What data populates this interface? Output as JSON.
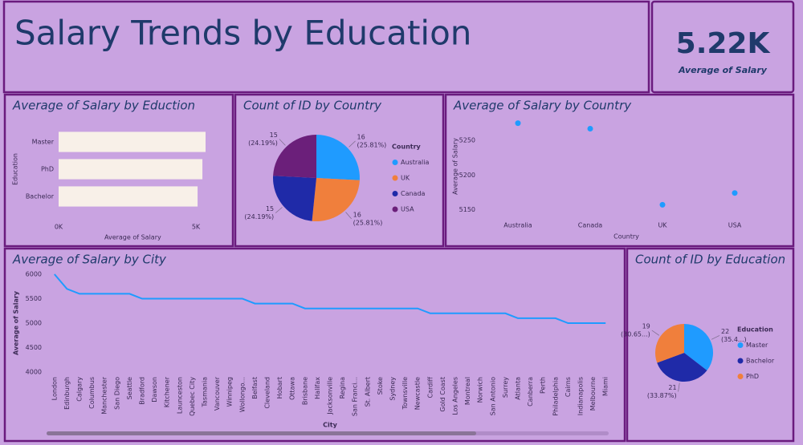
{
  "title": "Salary Trends by Education",
  "kpi": {
    "value": "5.22K",
    "label": "Average of Salary"
  },
  "chart_data": [
    {
      "type": "bar",
      "orientation": "horizontal",
      "title": "Average of Salary by Eduction",
      "categories": [
        "Master",
        "PhD",
        "Bachelor"
      ],
      "values": [
        5350,
        5235,
        5060
      ],
      "color": "#f8f0e8",
      "xlim": [
        0,
        5400
      ],
      "xticks": [
        {
          "value": 0,
          "label": "0K"
        },
        {
          "value": 5000,
          "label": "5K"
        }
      ],
      "x_label": "Average of Salary",
      "y_label": "Education"
    },
    {
      "type": "pie",
      "title": "Count of ID by Country",
      "legend_title": "Country",
      "categories": [
        "Australia",
        "UK",
        "Canada",
        "USA"
      ],
      "values": [
        16,
        16,
        15,
        15
      ],
      "percent_labels": [
        "(25.81%)",
        "(25.81%)",
        "(24.19%)",
        "(24.19%)"
      ],
      "colors": [
        "#1f9bff",
        "#f07f3c",
        "#1f2aa8",
        "#6b1f7a"
      ]
    },
    {
      "type": "scatter",
      "title": "Average of Salary by Country",
      "categories": [
        "Australia",
        "Canada",
        "UK",
        "USA"
      ],
      "values": [
        5275,
        5267,
        5157,
        5174
      ],
      "color": "#1f9bff",
      "ylim": [
        5140,
        5285
      ],
      "yticks": [
        5150,
        5200,
        5250
      ],
      "x_label": "Country",
      "y_label": "Average of Salary"
    },
    {
      "type": "line",
      "title": "Average of Salary by City",
      "categories": [
        "London",
        "Edinburgh",
        "Calgary",
        "Columbus",
        "Manchester",
        "San Diego",
        "Seattle",
        "Bradford",
        "Dawson",
        "Kitchener",
        "Launceston",
        "Quebec City",
        "Tasmania",
        "Vancouver",
        "Winnipeg",
        "Wollongo...",
        "Belfast",
        "Cleveland",
        "Hobart",
        "Ottawa",
        "Brisbane",
        "Halifax",
        "Jacksonville",
        "Regina",
        "San Franci...",
        "St. Albert",
        "Stoke",
        "Sydney",
        "Townsville",
        "Newcastle",
        "Cardiff",
        "Gold Coast",
        "Los Angeles",
        "Montreal",
        "Norwich",
        "San Antonio",
        "Surrey",
        "Atlanta",
        "Canberra",
        "Perth",
        "Philadelphia",
        "Cairns",
        "Indianapolis",
        "Melbourne",
        "Miami"
      ],
      "values": [
        6000,
        5700,
        5600,
        5600,
        5600,
        5600,
        5600,
        5500,
        5500,
        5500,
        5500,
        5500,
        5500,
        5500,
        5500,
        5500,
        5400,
        5400,
        5400,
        5400,
        5300,
        5300,
        5300,
        5300,
        5300,
        5300,
        5300,
        5300,
        5300,
        5300,
        5200,
        5200,
        5200,
        5200,
        5200,
        5200,
        5200,
        5100,
        5100,
        5100,
        5100,
        5000,
        5000,
        5000,
        5000
      ],
      "color": "#1f9bff",
      "ylim": [
        4000,
        6000
      ],
      "yticks": [
        4000,
        4500,
        5000,
        5500,
        6000
      ],
      "x_label": "City",
      "y_label": "Average of Salary"
    },
    {
      "type": "pie",
      "title": "Count of ID by Education",
      "legend_title": "Education",
      "categories": [
        "Master",
        "Bachelor",
        "PhD"
      ],
      "values": [
        22,
        21,
        19
      ],
      "percent_labels": [
        "(35.4...)",
        "(33.87%)",
        "(30.65...)"
      ],
      "colors": [
        "#1f9bff",
        "#1f2aa8",
        "#f07f3c"
      ]
    }
  ]
}
